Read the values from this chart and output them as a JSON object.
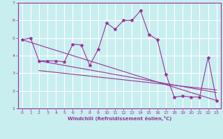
{
  "xlabel": "Windchill (Refroidissement éolien,°C)",
  "ylabel": "",
  "background_color": "#c8eef0",
  "line_color": "#993399",
  "grid_color": "#ffffff",
  "xlim": [
    -0.5,
    23.5
  ],
  "ylim": [
    1,
    7
  ],
  "yticks": [
    1,
    2,
    3,
    4,
    5,
    6,
    7
  ],
  "xticks": [
    0,
    1,
    2,
    3,
    4,
    5,
    6,
    7,
    8,
    9,
    10,
    11,
    12,
    13,
    14,
    15,
    16,
    17,
    18,
    19,
    20,
    21,
    22,
    23
  ],
  "series1_x": [
    0,
    1,
    2,
    3,
    4,
    5,
    6,
    7,
    8,
    9,
    10,
    11,
    12,
    13,
    14,
    15,
    16,
    17,
    18,
    19,
    20,
    21,
    22,
    23
  ],
  "series1_y": [
    4.9,
    5.0,
    3.7,
    3.7,
    3.7,
    3.65,
    4.65,
    4.6,
    3.45,
    4.35,
    5.85,
    5.5,
    6.0,
    6.0,
    6.55,
    5.2,
    4.9,
    2.95,
    1.65,
    1.7,
    1.65,
    1.65,
    3.9,
    1.45
  ],
  "series2_x": [
    0,
    23
  ],
  "series2_y": [
    4.9,
    1.45
  ],
  "series3_x": [
    2,
    23
  ],
  "series3_y": [
    3.15,
    2.05
  ],
  "series4_x": [
    2,
    23
  ],
  "series4_y": [
    3.7,
    1.9
  ]
}
